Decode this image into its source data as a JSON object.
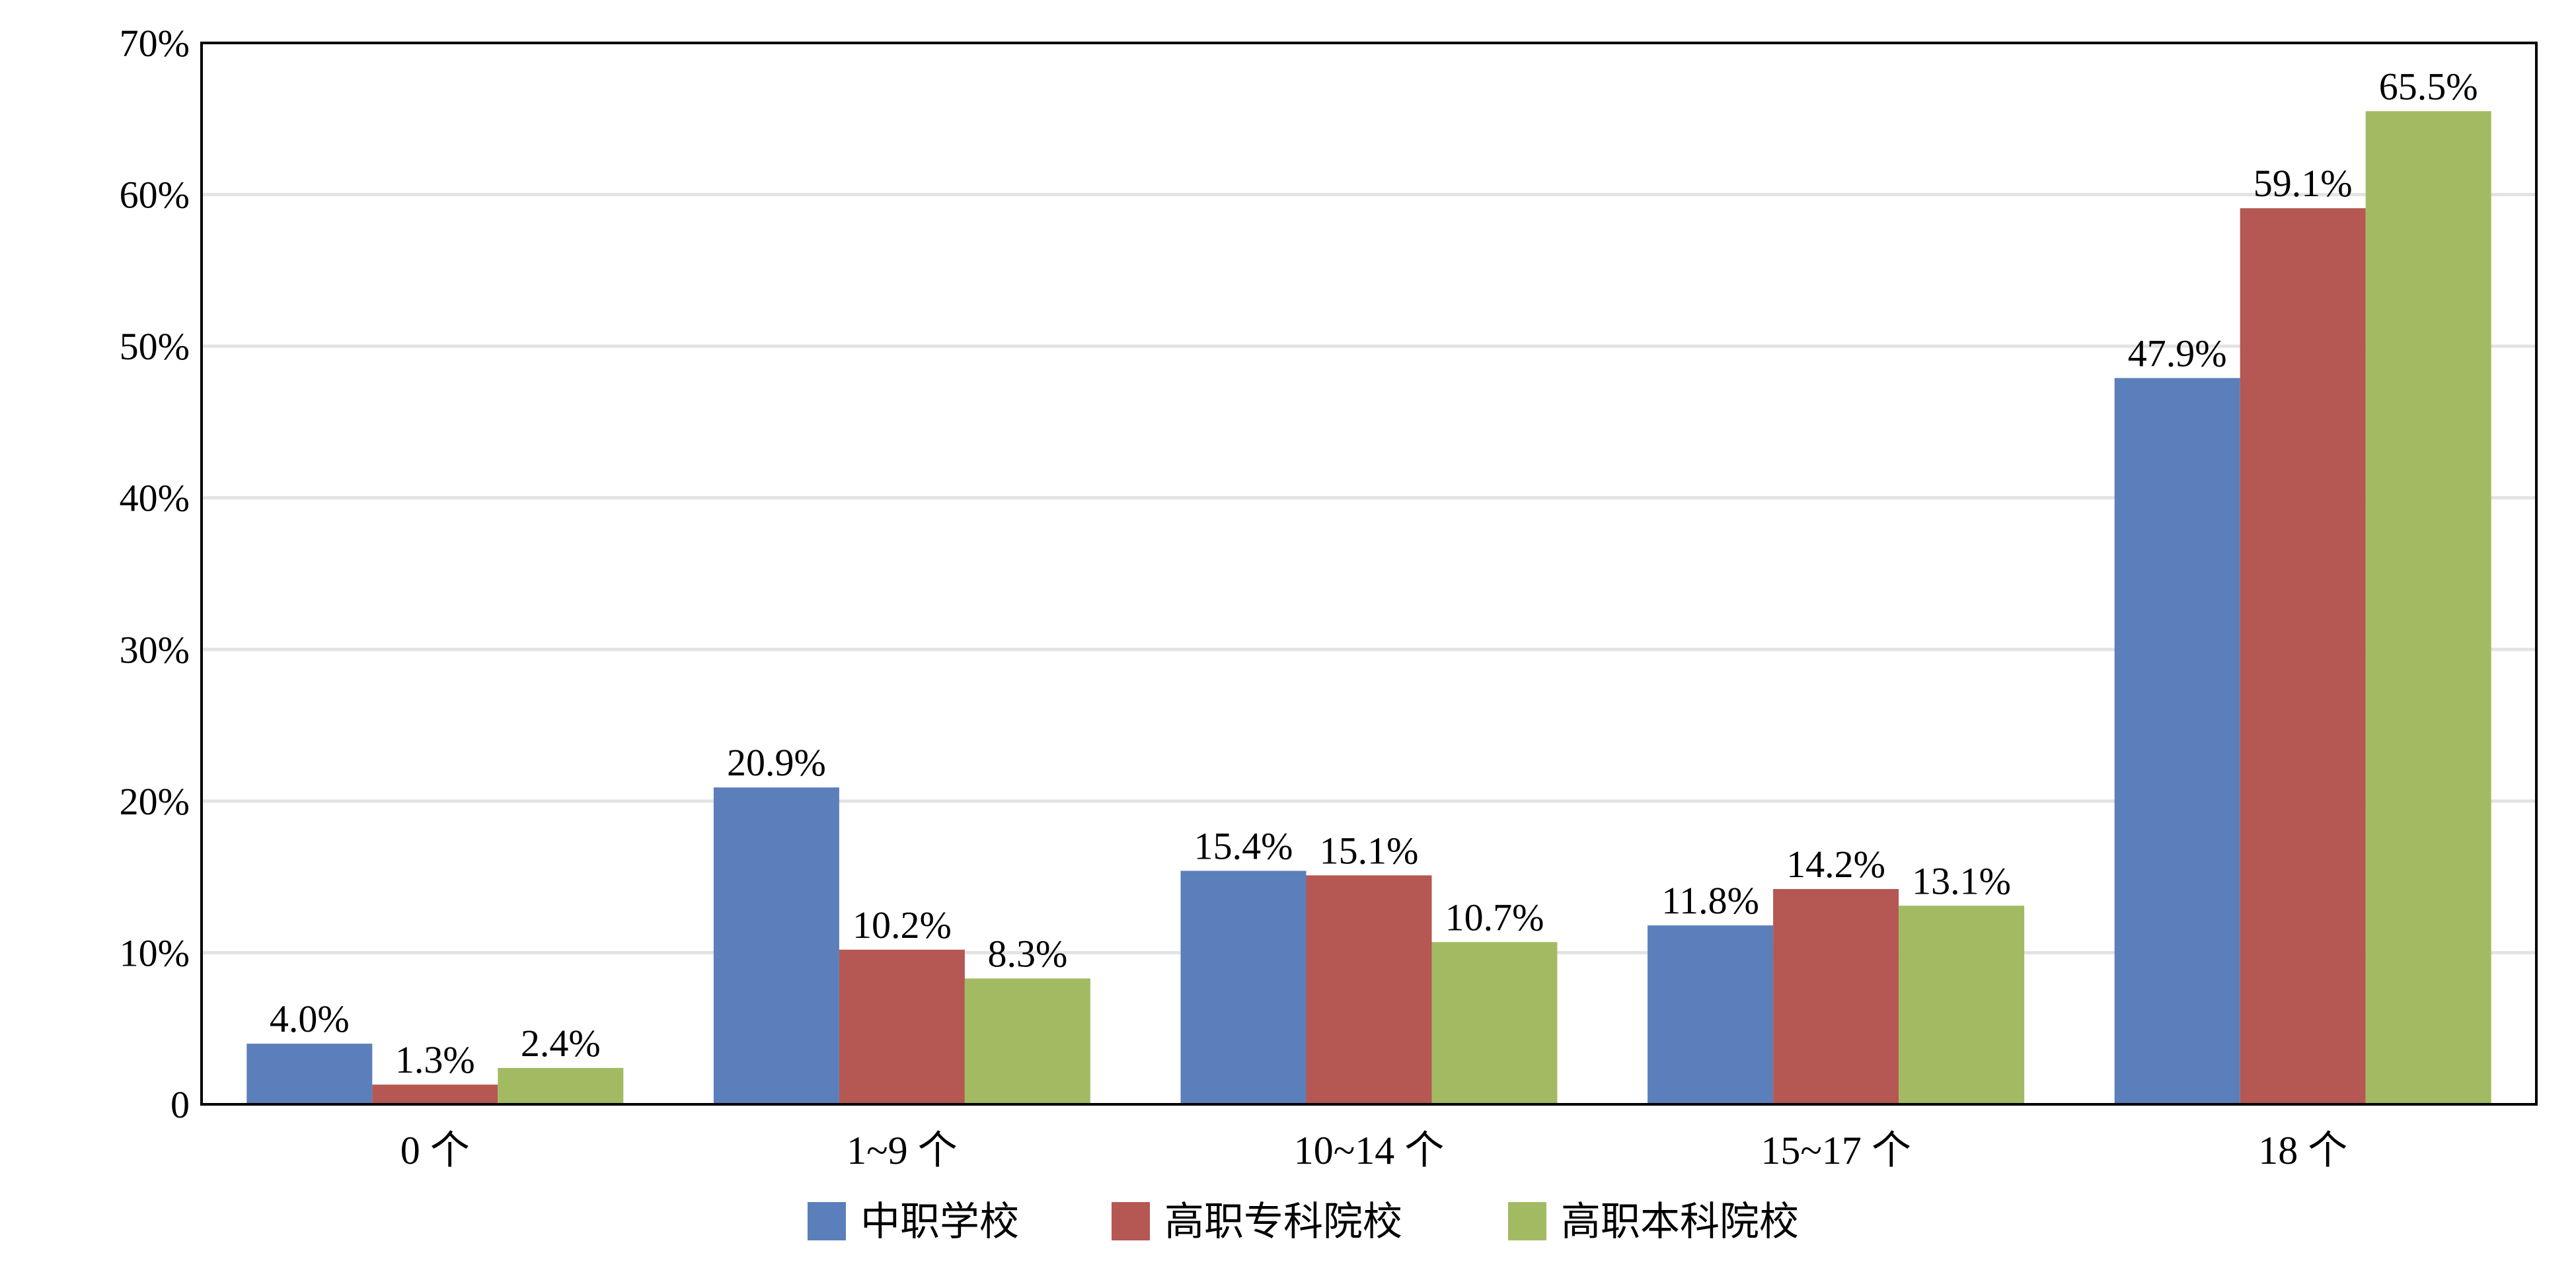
{
  "chart_data": {
    "type": "bar",
    "categories": [
      "0 个",
      "1~9 个",
      "10~14 个",
      "15~17 个",
      "18 个"
    ],
    "series": [
      {
        "name": "中职学校",
        "values": [
          4.0,
          20.9,
          15.4,
          11.8,
          47.9
        ],
        "labels": [
          "4.0%",
          "20.9%",
          "15.4%",
          "11.8%",
          "47.9%"
        ],
        "color": "#5b7fba"
      },
      {
        "name": "高职专科院校",
        "values": [
          1.3,
          10.2,
          15.1,
          14.2,
          59.1
        ],
        "labels": [
          "1.3%",
          "10.2%",
          "15.1%",
          "14.2%",
          "59.1%"
        ],
        "color": "#b55752"
      },
      {
        "name": "高职本科院校",
        "values": [
          2.4,
          8.3,
          10.7,
          13.1,
          65.5
        ],
        "labels": [
          "2.4%",
          "8.3%",
          "10.7%",
          "13.1%",
          "65.5%"
        ],
        "color": "#a2bb63"
      }
    ],
    "yticks": [
      0,
      10,
      20,
      30,
      40,
      50,
      60,
      70
    ],
    "ytick_labels": [
      "0",
      "10%",
      "20%",
      "30%",
      "40%",
      "50%",
      "60%",
      "70%"
    ],
    "ylim": [
      0,
      70
    ],
    "title": "",
    "xlabel": "",
    "ylabel": "",
    "grid": true,
    "legend_position": "bottom-center"
  }
}
